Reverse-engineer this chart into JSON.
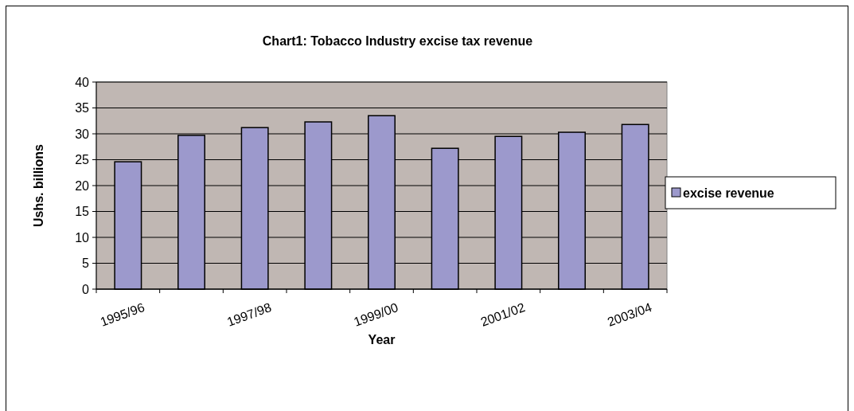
{
  "chart_data": {
    "type": "bar",
    "title": "Chart1: Tobacco Industry excise tax revenue",
    "xlabel": "Year",
    "ylabel": "Ushs. billions",
    "categories": [
      "1995/96",
      null,
      "1997/98",
      null,
      "1999/00",
      null,
      "2001/02",
      null,
      "2003/04"
    ],
    "series": [
      {
        "name": "excise revenue",
        "color": "#9c99cc",
        "values": [
          24.6,
          29.7,
          31.2,
          32.3,
          33.5,
          27.2,
          29.5,
          30.3,
          31.8
        ]
      }
    ],
    "ylim": [
      0,
      40
    ],
    "yticks": [
      0,
      5,
      10,
      15,
      20,
      25,
      30,
      35,
      40
    ],
    "grid": "y",
    "legend": "right"
  }
}
